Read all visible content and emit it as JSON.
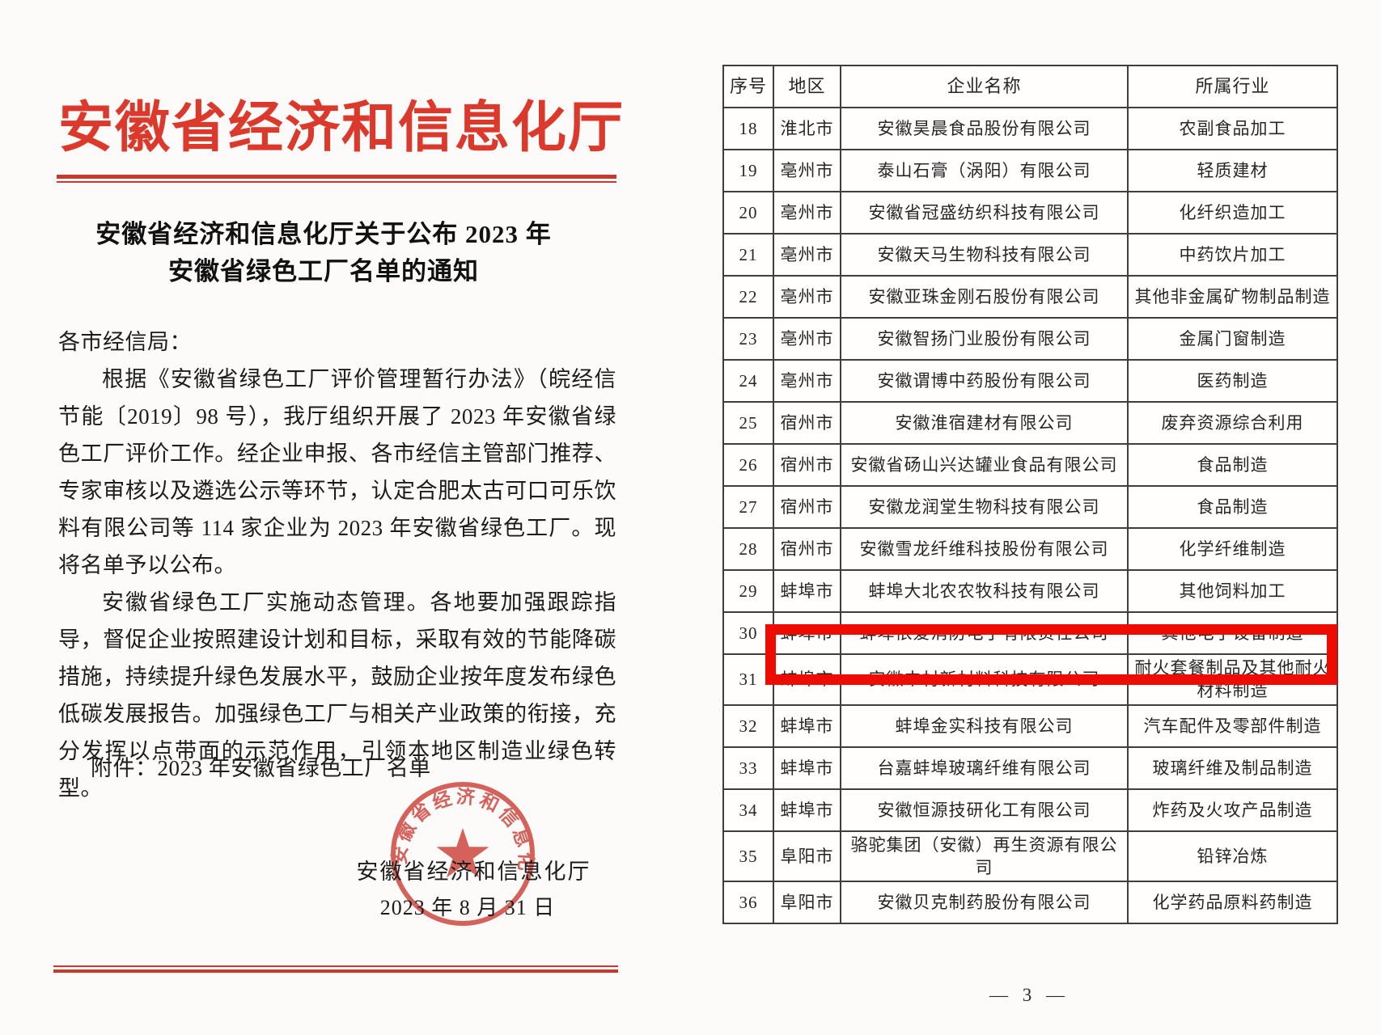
{
  "page_left": {
    "letterhead": "安徽省经济和信息化厅",
    "title_line1": "安徽省经济和信息化厅关于公布 2023 年",
    "title_line2": "安徽省绿色工厂名单的通知",
    "salutation": "各市经信局：",
    "paragraph1": "根据《安徽省绿色工厂评价管理暂行办法》（皖经信节能〔2019〕98 号），我厅组织开展了 2023 年安徽省绿色工厂评价工作。经企业申报、各市经信主管部门推荐、专家审核以及遴选公示等环节，认定合肥太古可口可乐饮料有限公司等 114 家企业为 2023 年安徽省绿色工厂。现将名单予以公布。",
    "paragraph2": "安徽省绿色工厂实施动态管理。各地要加强跟踪指导，督促企业按照建设计划和目标，采取有效的节能降碳措施，持续提升绿色发展水平，鼓励企业按年度发布绿色低碳发展报告。加强绿色工厂与相关产业政策的衔接，充分发挥以点带面的示范作用，引领本地区制造业绿色转型。",
    "attachment": "附件：2023 年安徽省绿色工厂名单",
    "seal_text": "安徽省经济和信息化厅",
    "signer": "安徽省经济和信息化厅",
    "date": "2023 年 8 月 31 日"
  },
  "page_right": {
    "table": {
      "headers": [
        "序号",
        "地区",
        "企业名称",
        "所属行业"
      ],
      "rows": [
        {
          "no": "18",
          "region": "淮北市",
          "company": "安徽昊晨食品股份有限公司",
          "industry": "农副食品加工",
          "highlighted": false
        },
        {
          "no": "19",
          "region": "亳州市",
          "company": "泰山石膏（涡阳）有限公司",
          "industry": "轻质建材",
          "highlighted": false
        },
        {
          "no": "20",
          "region": "亳州市",
          "company": "安徽省冠盛纺织科技有限公司",
          "industry": "化纤织造加工",
          "highlighted": false
        },
        {
          "no": "21",
          "region": "亳州市",
          "company": "安徽天马生物科技有限公司",
          "industry": "中药饮片加工",
          "highlighted": false
        },
        {
          "no": "22",
          "region": "亳州市",
          "company": "安徽亚珠金刚石股份有限公司",
          "industry": "其他非金属矿物制品制造",
          "highlighted": false
        },
        {
          "no": "23",
          "region": "亳州市",
          "company": "安徽智扬门业股份有限公司",
          "industry": "金属门窗制造",
          "highlighted": false
        },
        {
          "no": "24",
          "region": "亳州市",
          "company": "安徽谓博中药股份有限公司",
          "industry": "医药制造",
          "highlighted": false
        },
        {
          "no": "25",
          "region": "宿州市",
          "company": "安徽淮宿建材有限公司",
          "industry": "废弃资源综合利用",
          "highlighted": false
        },
        {
          "no": "26",
          "region": "宿州市",
          "company": "安徽省砀山兴达罐业食品有限公司",
          "industry": "食品制造",
          "highlighted": false
        },
        {
          "no": "27",
          "region": "宿州市",
          "company": "安徽龙润堂生物科技有限公司",
          "industry": "食品制造",
          "highlighted": false
        },
        {
          "no": "28",
          "region": "宿州市",
          "company": "安徽雪龙纤维科技股份有限公司",
          "industry": "化学纤维制造",
          "highlighted": false
        },
        {
          "no": "29",
          "region": "蚌埠市",
          "company": "蚌埠大北农农牧科技有限公司",
          "industry": "其他饲料加工",
          "highlighted": false
        },
        {
          "no": "30",
          "region": "蚌埠市",
          "company": "蚌埠依爱消防电子有限责任公司",
          "industry": "其他电子设备制造",
          "highlighted": true
        },
        {
          "no": "31",
          "region": "蚌埠市",
          "company": "安徽中材新材料科技有限公司",
          "industry": "耐火套餐制品及其他耐火材料制造",
          "highlighted": false
        },
        {
          "no": "32",
          "region": "蚌埠市",
          "company": "蚌埠金实科技有限公司",
          "industry": "汽车配件及零部件制造",
          "highlighted": false
        },
        {
          "no": "33",
          "region": "蚌埠市",
          "company": "台嘉蚌埠玻璃纤维有限公司",
          "industry": "玻璃纤维及制品制造",
          "highlighted": false
        },
        {
          "no": "34",
          "region": "蚌埠市",
          "company": "安徽恒源技研化工有限公司",
          "industry": "炸药及火攻产品制造",
          "highlighted": false
        },
        {
          "no": "35",
          "region": "阜阳市",
          "company": "骆驼集团（安徽）再生资源有限公司",
          "industry": "铅锌冶炼",
          "highlighted": false
        },
        {
          "no": "36",
          "region": "阜阳市",
          "company": "安徽贝克制药股份有限公司",
          "industry": "化学药品原料药制造",
          "highlighted": false
        }
      ]
    },
    "page_number": "— 3 —"
  },
  "colors": {
    "letterhead_red": "#dc392d",
    "rule_red": "#c8382c",
    "seal_red": "#cf4038",
    "highlight_red": "#ee0b00",
    "table_border": "#3e3e3e",
    "text": "#1c1c1c"
  }
}
